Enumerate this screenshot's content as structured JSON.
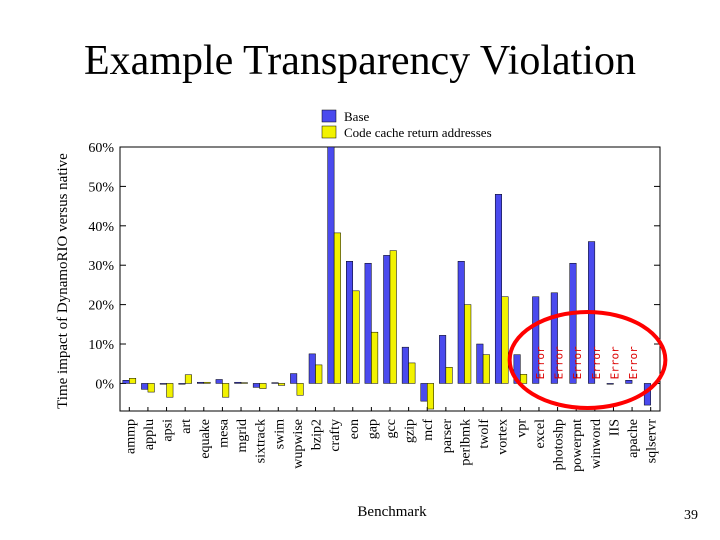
{
  "slide": {
    "title": "Example Transparency Violation",
    "page_number": "39"
  },
  "chart_data": {
    "type": "bar",
    "title": "",
    "xlabel": "Benchmark",
    "ylabel": "Time impact of DynamoRIO versus native",
    "ylim": [
      -7,
      60
    ],
    "yticks": [
      0,
      10,
      20,
      30,
      40,
      50,
      60
    ],
    "ytick_labels": [
      "0%",
      "10%",
      "20%",
      "30%",
      "40%",
      "50%",
      "60%"
    ],
    "grid": false,
    "legend_position": "top",
    "categories": [
      "ammp",
      "applu",
      "apsi",
      "art",
      "equake",
      "mesa",
      "mgrid",
      "sixtrack",
      "swim",
      "wupwise",
      "bzip2",
      "crafty",
      "eon",
      "gap",
      "gcc",
      "gzip",
      "mcf",
      "parser",
      "perlbmk",
      "twolf",
      "vortex",
      "vpr",
      "excel",
      "photoshp",
      "powerpnt",
      "winword",
      "IIS",
      "apache",
      "sqlservr"
    ],
    "series": [
      {
        "name": "Base",
        "color": "#4a4aee",
        "values": [
          0.8,
          -1.5,
          0,
          0,
          0.3,
          1.0,
          0.3,
          -1.0,
          0.2,
          2.5,
          7.5,
          60,
          31,
          30.5,
          32.5,
          9.2,
          -4.5,
          12.2,
          31,
          10,
          48,
          7.3,
          22,
          23,
          30.5,
          36,
          0,
          0.8,
          -5.5
        ]
      },
      {
        "name": "Code cache return addresses",
        "color": "#f2f200",
        "values": [
          1.3,
          -2.2,
          -3.5,
          2.2,
          0.3,
          -3.5,
          0.2,
          -1.3,
          -0.5,
          -3.0,
          4.7,
          38.2,
          23.5,
          13,
          33.7,
          5.2,
          -6.5,
          4.1,
          20,
          7.3,
          22,
          2.3,
          null,
          null,
          null,
          null,
          null,
          null,
          null
        ]
      }
    ],
    "annotations": {
      "error_label": "Error",
      "error_categories": [
        "excel",
        "photoshp",
        "powerpnt",
        "winword",
        "IIS",
        "apache"
      ],
      "error_color": "#dd0000",
      "highlight_color": "#ff0000"
    }
  }
}
